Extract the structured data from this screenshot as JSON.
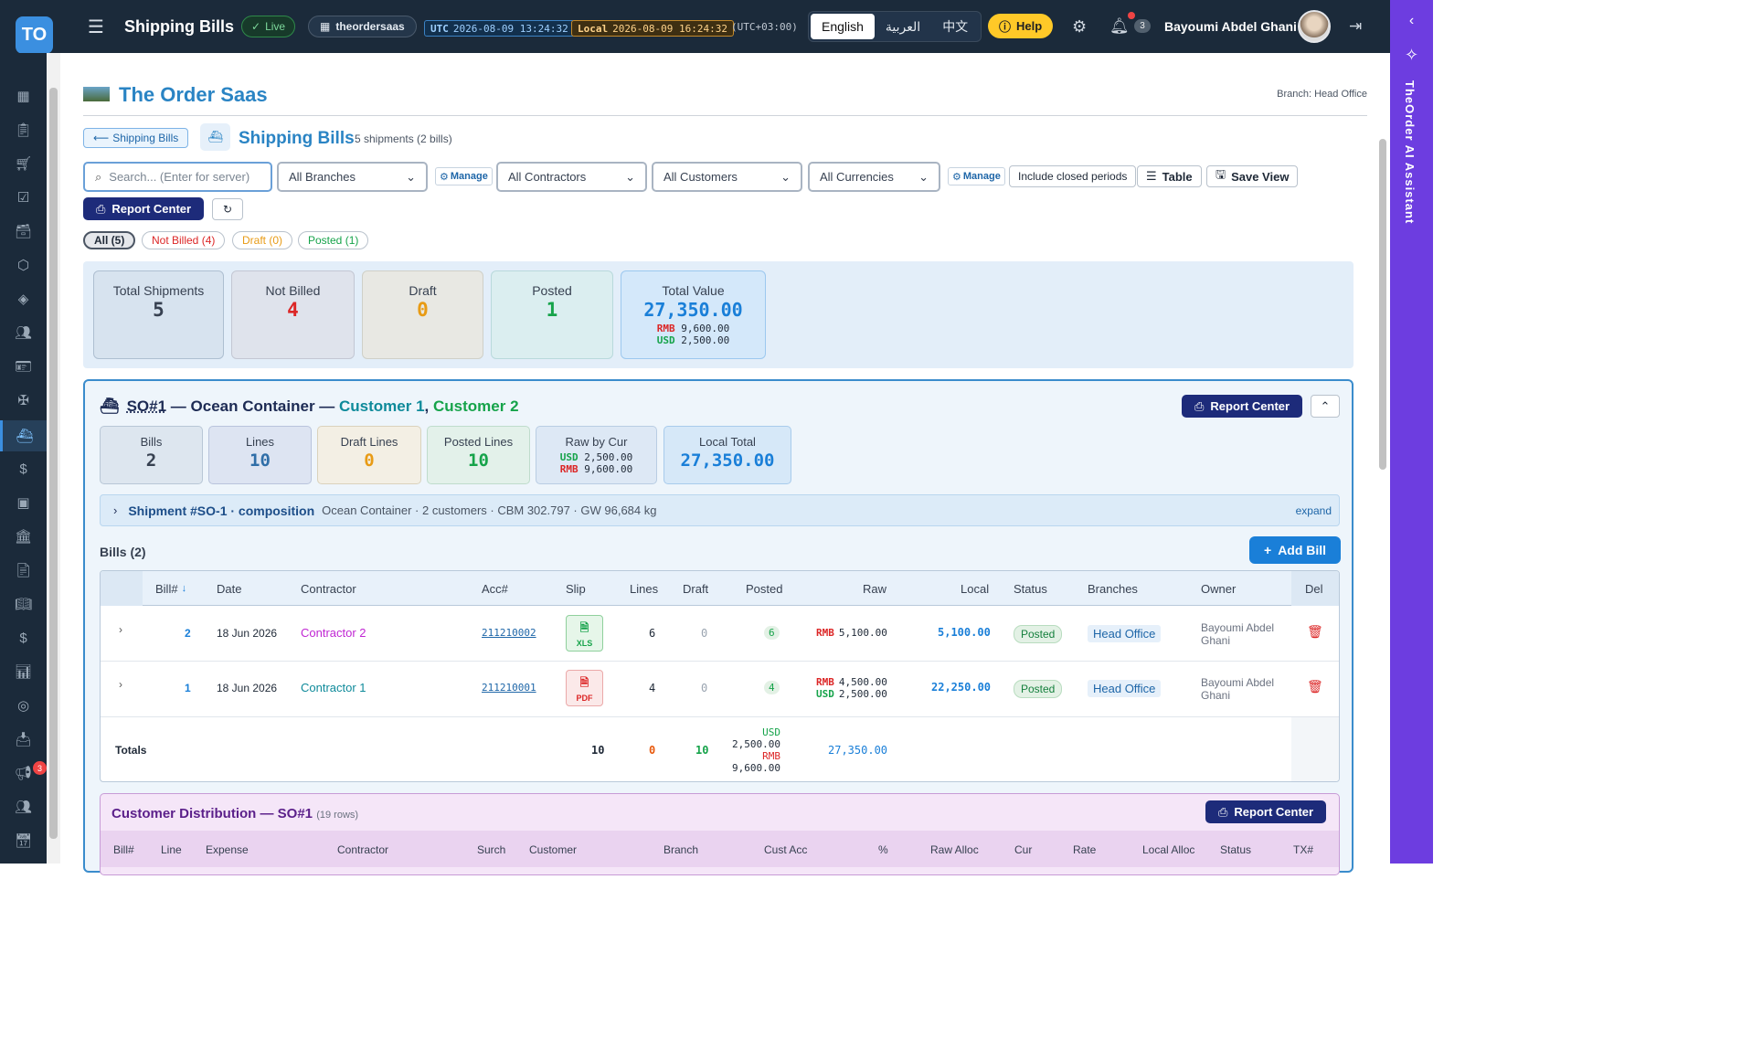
{
  "topbar": {
    "logo": "TO",
    "menu_icon": "menu-icon",
    "title": "Shipping Bills",
    "live": "Live",
    "tenant": "theordersaas",
    "utc_label": "UTC",
    "utc_time": "2026-08-09 13:24:32",
    "local_label": "Local",
    "local_time": "2026-08-09 16:24:32",
    "offset": "(UTC+03:00)",
    "languages": [
      "English",
      "العربية",
      "中文"
    ],
    "active_language": "English",
    "help": "Help",
    "notifications": "3",
    "user": "Bayoumi Abdel Ghani"
  },
  "assistant": {
    "label": "TheOrder AI Assistant"
  },
  "sidebar": {
    "badge": "3",
    "icons": [
      "dashboard-icon",
      "clipboard-icon",
      "cart-icon",
      "checklist-icon",
      "archive-icon",
      "box-icon",
      "layers-icon",
      "users-icon",
      "badge-icon",
      "person-icon",
      "ship-icon",
      "dollar-doc-icon",
      "wallet-icon",
      "bank-icon",
      "document-icon",
      "book-icon",
      "dollar-icon",
      "chart-icon",
      "coins-icon",
      "inbox-icon",
      "megaphone-icon",
      "team-icon",
      "calendar-clock-icon"
    ]
  },
  "header": {
    "brand": "The Order Saas",
    "branch": "Branch: Head Office"
  },
  "page": {
    "back": "Shipping Bills",
    "title": "Shipping Bills",
    "subtitle": "5 shipments (2 bills)"
  },
  "filters": {
    "search_placeholder": "Search... (Enter for server)",
    "branches": "All Branches",
    "manage": "Manage",
    "contractors": "All Contractors",
    "customers": "All Customers",
    "currencies": "All Currencies",
    "include_closed": "Include closed periods",
    "table": "Table",
    "save_view": "Save View",
    "report_center": "Report Center"
  },
  "chips": [
    {
      "label": "All (5)",
      "color": "#374151"
    },
    {
      "label": "Not Billed (4)",
      "color": "#dc2626"
    },
    {
      "label": "Draft (0)",
      "color": "#e89b15"
    },
    {
      "label": "Posted (1)",
      "color": "#16a34a"
    }
  ],
  "stats": {
    "total_shipments": {
      "label": "Total Shipments",
      "value": "5"
    },
    "not_billed": {
      "label": "Not Billed",
      "value": "4"
    },
    "draft": {
      "label": "Draft",
      "value": "0"
    },
    "posted": {
      "label": "Posted",
      "value": "1"
    },
    "total_value": {
      "label": "Total Value",
      "value": "27,350.00",
      "rmb_cur": "RMB",
      "rmb": "9,600.00",
      "usd_cur": "USD",
      "usd": "2,500.00"
    }
  },
  "shipment": {
    "so": "SO#1",
    "dash1": " — Ocean Container — ",
    "customer1": "Customer 1",
    "comma": ", ",
    "customer2": "Customer 2",
    "report_center": "Report Center",
    "mini": {
      "bills": {
        "label": "Bills",
        "value": "2"
      },
      "lines": {
        "label": "Lines",
        "value": "10"
      },
      "draft": {
        "label": "Draft Lines",
        "value": "0"
      },
      "posted": {
        "label": "Posted Lines",
        "value": "10"
      },
      "raw": {
        "label": "Raw by Cur",
        "usd_cur": "USD",
        "usd": "2,500.00",
        "rmb_cur": "RMB",
        "rmb": "9,600.00"
      },
      "local": {
        "label": "Local Total",
        "value": "27,350.00"
      }
    },
    "composition": {
      "title": "Shipment #SO-1 · composition",
      "details": "Ocean Container · 2 customers · CBM 302.797 · GW 96,684 kg",
      "expand": "expand"
    },
    "bills_label": "Bills (2)",
    "add_bill": "Add Bill"
  },
  "bills_table": {
    "headers": [
      "Bill#",
      "Date",
      "Contractor",
      "Acc#",
      "Slip",
      "Lines",
      "Draft",
      "Posted",
      "Raw",
      "Local",
      "Status",
      "Branches",
      "Owner",
      "Del"
    ],
    "rows": [
      {
        "bill": "2",
        "date": "18 Jun 2026",
        "contractor": "Contractor 2",
        "contractor_color": "#c026d3",
        "acc": "211210002",
        "slip": "XLS",
        "lines": "6",
        "draft": "0",
        "posted": "6",
        "raw1_cur": "RMB",
        "raw1": "5,100.00",
        "raw2_cur": "",
        "raw2": "",
        "local": "5,100.00",
        "status": "Posted",
        "branch": "Head Office",
        "owner": "Bayoumi Abdel Ghani"
      },
      {
        "bill": "1",
        "date": "18 Jun 2026",
        "contractor": "Contractor 1",
        "contractor_color": "#0e8a9a",
        "acc": "211210001",
        "slip": "PDF",
        "lines": "4",
        "draft": "0",
        "posted": "4",
        "raw1_cur": "RMB",
        "raw1": "4,500.00",
        "raw2_cur": "USD",
        "raw2": "2,500.00",
        "local": "22,250.00",
        "status": "Posted",
        "branch": "Head Office",
        "owner": "Bayoumi Abdel Ghani"
      }
    ],
    "totals": {
      "label": "Totals",
      "lines": "10",
      "draft": "0",
      "posted": "10",
      "usd_cur": "USD",
      "usd": "2,500.00",
      "rmb_cur": "RMB",
      "rmb": "9,600.00",
      "local": "27,350.00"
    }
  },
  "customer_distribution": {
    "title": "Customer Distribution — SO#1",
    "rows": "(19 rows)",
    "report_center": "Report Center",
    "headers": [
      "Bill#",
      "Line",
      "Expense",
      "Contractor",
      "Surch",
      "Customer",
      "Branch",
      "Cust Acc",
      "%",
      "Raw Alloc",
      "Cur",
      "Rate",
      "Local Alloc",
      "Status",
      "TX#"
    ]
  }
}
